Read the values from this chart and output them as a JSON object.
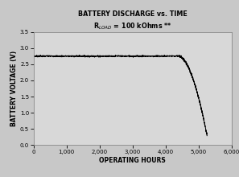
{
  "title_line1": "BATTERY DISCHARGE vs. TIME",
  "title_line2": "R$_{LOAD}$ = 100 kOhms **",
  "xlabel": "OPERATING HOURS",
  "ylabel": "BATTERY VOLTAGE (V)",
  "xlim": [
    0,
    6000
  ],
  "ylim": [
    0.0,
    3.5
  ],
  "xticks": [
    0,
    1000,
    2000,
    3000,
    4000,
    5000,
    6000
  ],
  "yticks": [
    0.0,
    0.5,
    1.0,
    1.5,
    2.0,
    2.5,
    3.0,
    3.5
  ],
  "line_color": "#000000",
  "background_color": "#c8c8c8",
  "plot_bg_color": "#d8d8d8",
  "flat_voltage": 2.75,
  "flat_end": 4400,
  "drop_end": 5250,
  "end_voltage": 0.3,
  "noise_flat": 0.012,
  "noise_drop": 0.018
}
